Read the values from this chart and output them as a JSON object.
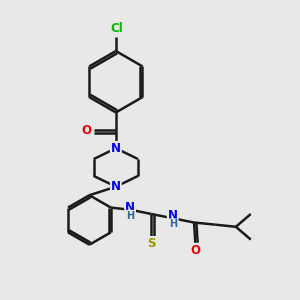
{
  "background_color": "#e8e8e8",
  "line_color": "#1a1a1a",
  "bond_width": 1.8,
  "atom_colors": {
    "N": "#0000ee",
    "O": "#ee0000",
    "S": "#999900",
    "Cl": "#00bb00",
    "C": "#1a1a1a",
    "H": "#336699"
  },
  "font_size": 8.5
}
